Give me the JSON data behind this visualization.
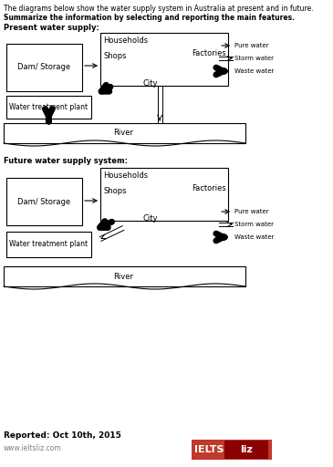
{
  "title_text": "The diagrams below show the water supply system in Australia at present and in future.",
  "subtitle_text": "Summarize the information by selecting and reporting the main features.",
  "present_label": "Present water supply:",
  "future_label": "Future water supply system:",
  "footer_reported": "Reported: Oct 10th, 2015",
  "footer_url": "www.ieltsliz.com",
  "legend_pure": "Pure water",
  "legend_storm": "Storm water",
  "legend_waste": "Waste water",
  "bg_color": "#ffffff",
  "box_edge": "#000000",
  "text_color": "#000000",
  "ielts_red": "#c0392b",
  "ielts_dark": "#8b0000"
}
